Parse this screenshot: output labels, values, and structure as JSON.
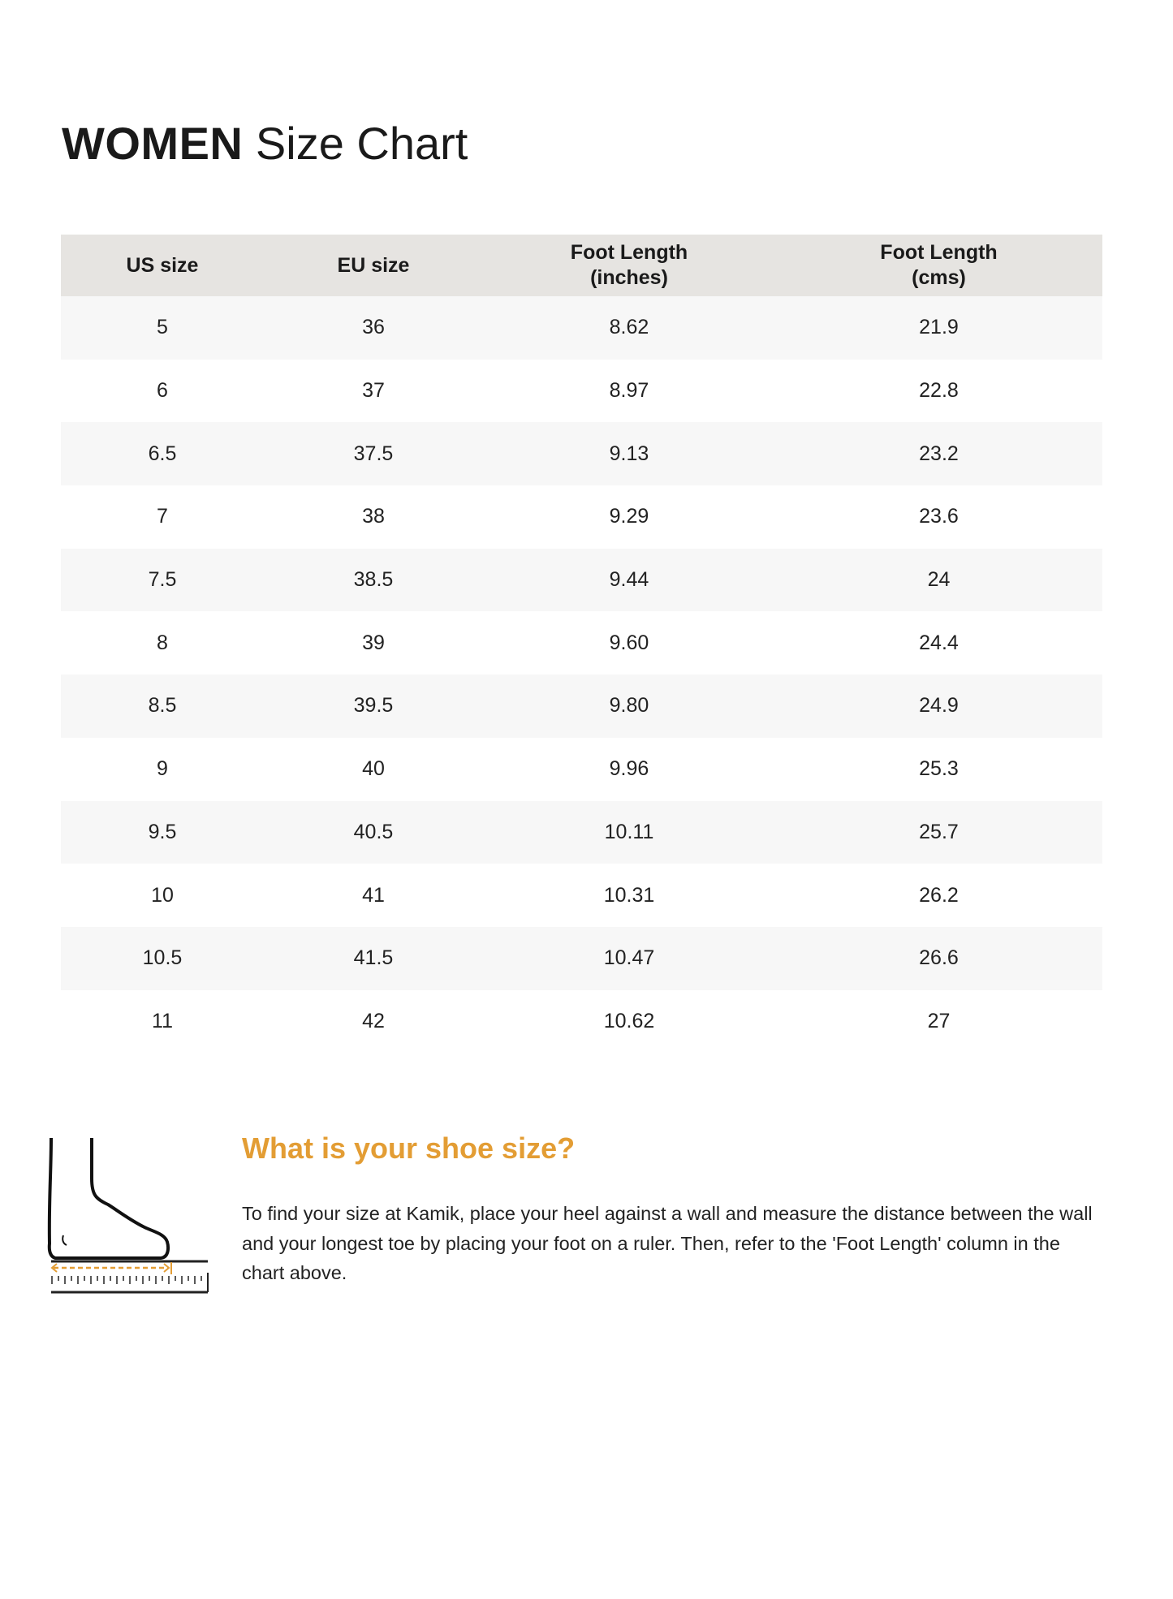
{
  "title": {
    "bold": "WOMEN",
    "rest": "Size Chart"
  },
  "table": {
    "headers": [
      {
        "line1": "US size",
        "line2": ""
      },
      {
        "line1": "EU size",
        "line2": ""
      },
      {
        "line1": "Foot Length",
        "line2": "(inches)"
      },
      {
        "line1": "Foot Length",
        "line2": "(cms)"
      }
    ],
    "rows": [
      [
        "5",
        "36",
        "8.62",
        "21.9"
      ],
      [
        "6",
        "37",
        "8.97",
        "22.8"
      ],
      [
        "6.5",
        "37.5",
        "9.13",
        "23.2"
      ],
      [
        "7",
        "38",
        "9.29",
        "23.6"
      ],
      [
        "7.5",
        "38.5",
        "9.44",
        "24"
      ],
      [
        "8",
        "39",
        "9.60",
        "24.4"
      ],
      [
        "8.5",
        "39.5",
        "9.80",
        "24.9"
      ],
      [
        "9",
        "40",
        "9.96",
        "25.3"
      ],
      [
        "9.5",
        "40.5",
        "10.11",
        "25.7"
      ],
      [
        "10",
        "41",
        "10.31",
        "26.2"
      ],
      [
        "10.5",
        "41.5",
        "10.47",
        "26.6"
      ],
      [
        "11",
        "42",
        "10.62",
        "27"
      ]
    ]
  },
  "help": {
    "heading": "What is your shoe size?",
    "text": "To find your size at Kamik, place your heel against a wall and measure the distance between the wall and your longest toe by placing your foot on a ruler. Then, refer to the 'Foot Length' column in the chart above.",
    "icon": "foot-on-ruler-icon"
  },
  "colors": {
    "accent": "#e39d34",
    "header_bg": "#e6e4e1",
    "row_alt_bg": "#f7f7f7"
  }
}
